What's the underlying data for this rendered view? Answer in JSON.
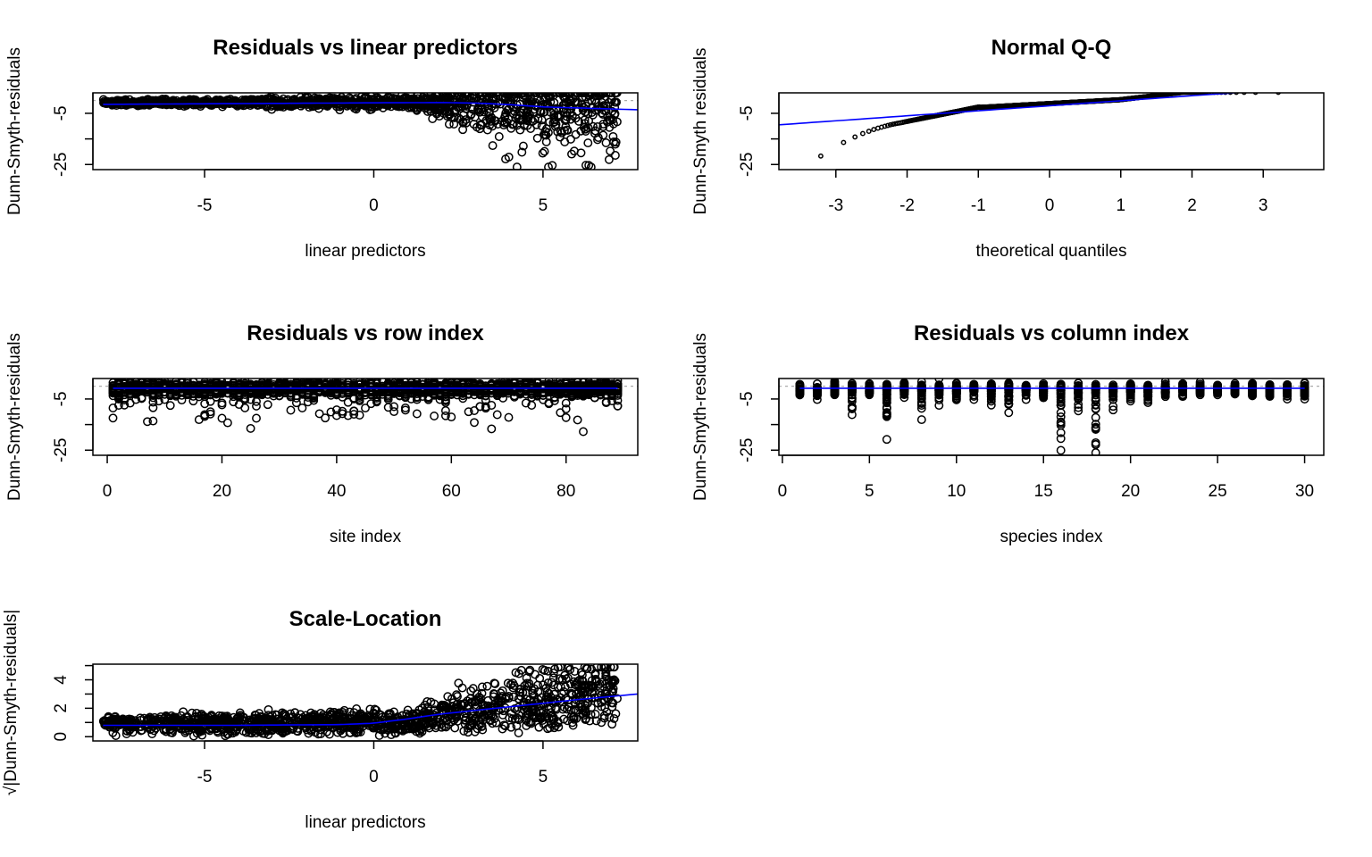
{
  "colors": {
    "points": "#000000",
    "smooth": "#0000ff",
    "reference": "#aaaaaa",
    "background": "#ffffff"
  },
  "chart_data": [
    {
      "type": "scatter",
      "title": "Residuals vs linear predictors",
      "xlabel": "linear predictors",
      "ylabel": "Dunn-Smyth-residuals",
      "xlim": [
        -8.3,
        7.8
      ],
      "ylim": [
        -27,
        3
      ],
      "xticks": [
        -5,
        0,
        5
      ],
      "yticks": [
        -25,
        -15,
        -5,
        5
      ],
      "ytick_labels": [
        "-25",
        "",
        "-5",
        ""
      ],
      "x_range": [
        -8,
        7.2
      ],
      "reference_line_y": 0,
      "smooth": {
        "x": [
          -8,
          -4,
          0,
          2,
          3,
          4,
          5,
          7.8
        ],
        "y": [
          -1.5,
          -1.2,
          -0.9,
          -0.8,
          -1.0,
          -1.6,
          -2.5,
          -3.6
        ]
      },
      "point_style": "open-circle"
    },
    {
      "type": "scatter",
      "title": "Normal Q-Q",
      "xlabel": "theoretical quantiles",
      "ylabel": "Dunn-Smyth residuals",
      "xlim": [
        -3.8,
        3.85
      ],
      "ylim": [
        -27,
        3
      ],
      "xticks": [
        -3,
        -2,
        -1,
        0,
        1,
        2,
        3
      ],
      "yticks": [
        -25,
        -15,
        -5,
        5
      ],
      "ytick_labels": [
        "-25",
        "",
        "-5",
        ""
      ],
      "qq_line": {
        "x": [
          -3.8,
          3.85
        ],
        "y": [
          -9.5,
          5.5
        ]
      },
      "point_style": "small-open-circle"
    },
    {
      "type": "scatter",
      "title": "Residuals vs row index",
      "xlabel": "site index",
      "ylabel": "Dunn-Smyth-residuals",
      "xlim": [
        -2.5,
        92.5
      ],
      "ylim": [
        -27,
        3
      ],
      "xticks": [
        0,
        20,
        40,
        60,
        80
      ],
      "yticks": [
        -25,
        -15,
        -5,
        5
      ],
      "ytick_labels": [
        "-25",
        "",
        "-5",
        ""
      ],
      "x_range": [
        1,
        89
      ],
      "reference_line_y": 0,
      "smooth": {
        "x": [
          1,
          89
        ],
        "y": [
          -0.8,
          -0.8
        ]
      },
      "point_style": "open-circle"
    },
    {
      "type": "scatter",
      "title": "Residuals vs column index",
      "xlabel": "species index",
      "ylabel": "Dunn-Smyth-residuals",
      "xlim": [
        -0.2,
        31.1
      ],
      "ylim": [
        -27,
        3
      ],
      "xticks": [
        0,
        5,
        10,
        15,
        20,
        25,
        30
      ],
      "yticks": [
        -25,
        -15,
        -5,
        5
      ],
      "ytick_labels": [
        "-25",
        "",
        "-5",
        ""
      ],
      "x_range": [
        1,
        30
      ],
      "reference_line_y": 0,
      "smooth": {
        "x": [
          1,
          30
        ],
        "y": [
          -0.8,
          -0.8
        ]
      },
      "point_style": "open-circle"
    },
    {
      "type": "scatter",
      "title": "Scale-Location",
      "xlabel": "linear predictors",
      "ylabel": "√|Dunn-Smyth-residuals|",
      "xlim": [
        -8.3,
        7.8
      ],
      "ylim": [
        -0.3,
        5.1
      ],
      "xticks": [
        -5,
        0,
        5
      ],
      "yticks": [
        0,
        1,
        2,
        3,
        4,
        5
      ],
      "ytick_labels": [
        "0",
        "",
        "2",
        "",
        "4",
        ""
      ],
      "x_range": [
        -8,
        7.2
      ],
      "smooth": {
        "x": [
          -8,
          -4,
          -1,
          0,
          1,
          2,
          3,
          4,
          5,
          6,
          7.8
        ],
        "y": [
          0.8,
          0.8,
          0.85,
          0.95,
          1.25,
          1.6,
          1.85,
          2.1,
          2.35,
          2.6,
          3.0
        ]
      },
      "point_style": "open-circle"
    }
  ]
}
